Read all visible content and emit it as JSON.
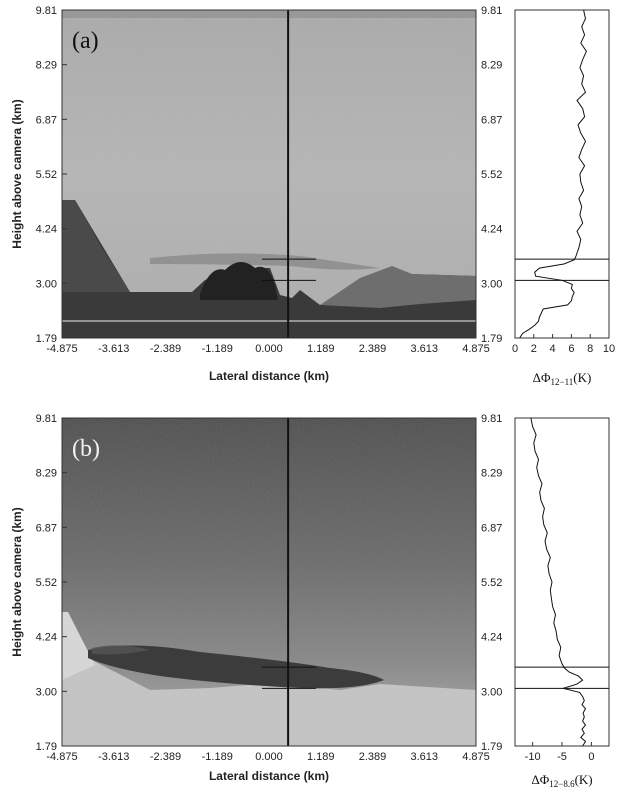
{
  "chart_data": [
    {
      "type": "line",
      "panel_label": "(a)",
      "ylabel": "Height above camera (km)",
      "xlabel": "Lateral distance (km)",
      "y_ticks": [
        "9.81",
        "8.29",
        "6.87",
        "5.52",
        "4.24",
        "3.00",
        "1.79"
      ],
      "x_ticks": [
        "-4.875",
        "-3.613",
        "-2.389",
        "-1.189",
        "0.000",
        "1.189",
        "2.389",
        "3.613",
        "4.875"
      ],
      "ylim": [
        1.79,
        9.81
      ],
      "xlim": [
        -4.875,
        4.875
      ],
      "image_vertical_line_x": 0.45,
      "plume_bounds": [
        3.2,
        3.72
      ],
      "profile": {
        "xlabel_main": "ΔΦ",
        "xlabel_sub": "12−11",
        "xlabel_unit": "(K)",
        "x_ticks": [
          "0",
          "2",
          "4",
          "6",
          "8",
          "10"
        ],
        "xlim": [
          0,
          10
        ],
        "heights": [
          1.79,
          1.9,
          2.0,
          2.1,
          2.2,
          2.3,
          2.4,
          2.5,
          2.6,
          2.7,
          2.8,
          2.9,
          3.0,
          3.1,
          3.2,
          3.3,
          3.4,
          3.5,
          3.6,
          3.7,
          3.8,
          4.0,
          4.2,
          4.4,
          4.6,
          4.8,
          5.0,
          5.2,
          5.4,
          5.6,
          5.8,
          6.0,
          6.2,
          6.4,
          6.6,
          6.8,
          7.0,
          7.2,
          7.4,
          7.6,
          7.8,
          8.0,
          8.2,
          8.4,
          8.6,
          8.8,
          9.0,
          9.2,
          9.4,
          9.6,
          9.81
        ],
        "values": [
          0.5,
          0.8,
          1.5,
          2.1,
          2.5,
          2.6,
          2.8,
          3.0,
          5.6,
          6.0,
          6.1,
          6.3,
          6.0,
          6.1,
          5.0,
          2.2,
          2.1,
          2.6,
          5.2,
          6.3,
          6.5,
          6.8,
          7.0,
          6.6,
          7.2,
          6.9,
          7.1,
          6.8,
          7.3,
          7.0,
          6.9,
          7.4,
          6.8,
          7.1,
          7.5,
          7.0,
          6.7,
          7.4,
          7.2,
          6.6,
          7.5,
          7.1,
          7.3,
          6.9,
          7.2,
          7.6,
          7.0,
          7.4,
          7.1,
          7.5,
          7.3
        ]
      }
    },
    {
      "type": "line",
      "panel_label": "(b)",
      "ylabel": "Height above camera (km)",
      "xlabel": "Lateral distance (km)",
      "y_ticks": [
        "9.81",
        "8.29",
        "6.87",
        "5.52",
        "4.24",
        "3.00",
        "1.79"
      ],
      "x_ticks": [
        "-4.875",
        "-3.613",
        "-2.389",
        "-1.189",
        "0.000",
        "1.189",
        "2.389",
        "3.613",
        "4.875"
      ],
      "ylim": [
        1.79,
        9.81
      ],
      "xlim": [
        -4.875,
        4.875
      ],
      "image_vertical_line_x": 0.45,
      "plume_bounds": [
        3.2,
        3.72
      ],
      "profile": {
        "xlabel_main": "ΔΦ",
        "xlabel_sub": "12−8.6",
        "xlabel_unit": "(K)",
        "x_ticks": [
          "-10",
          "-5",
          "0"
        ],
        "xlim": [
          -13,
          3
        ],
        "heights": [
          1.79,
          1.9,
          2.0,
          2.1,
          2.2,
          2.3,
          2.4,
          2.5,
          2.6,
          2.7,
          2.8,
          2.9,
          3.0,
          3.1,
          3.2,
          3.3,
          3.4,
          3.5,
          3.6,
          3.7,
          3.8,
          4.0,
          4.2,
          4.4,
          4.6,
          4.8,
          5.0,
          5.2,
          5.4,
          5.6,
          5.8,
          6.0,
          6.2,
          6.4,
          6.6,
          6.8,
          7.0,
          7.2,
          7.4,
          7.6,
          7.8,
          8.0,
          8.2,
          8.4,
          8.6,
          8.8,
          9.0,
          9.2,
          9.4,
          9.6,
          9.81
        ],
        "values": [
          -1.5,
          -1.0,
          -1.8,
          -1.2,
          -1.6,
          -1.0,
          -1.5,
          -1.2,
          -1.4,
          -1.0,
          -1.6,
          -1.2,
          -1.5,
          -2.0,
          -4.8,
          -2.5,
          -1.5,
          -2.2,
          -3.8,
          -4.6,
          -5.0,
          -5.5,
          -5.2,
          -5.8,
          -6.0,
          -6.4,
          -6.1,
          -6.6,
          -6.8,
          -7.0,
          -6.7,
          -7.2,
          -7.4,
          -7.0,
          -7.6,
          -7.9,
          -7.5,
          -8.1,
          -8.3,
          -8.0,
          -8.6,
          -8.8,
          -8.4,
          -9.0,
          -9.3,
          -9.0,
          -9.6,
          -9.8,
          -9.4,
          -10.0,
          -10.3
        ]
      }
    }
  ]
}
